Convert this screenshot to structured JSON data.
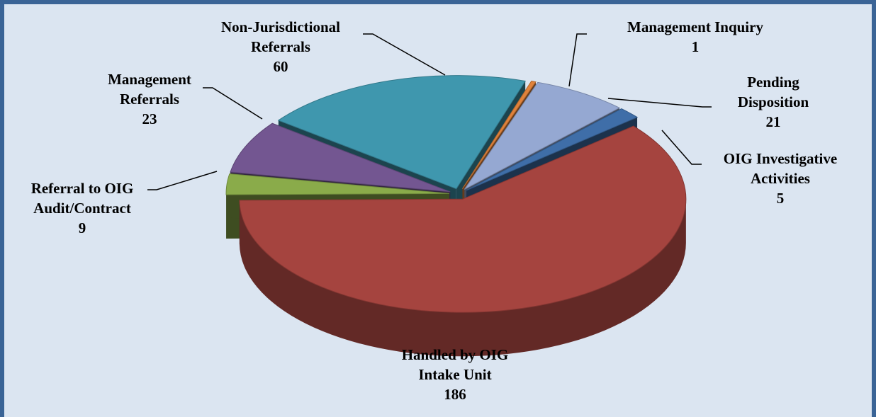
{
  "chart_data": {
    "type": "pie3d",
    "categories": [
      "Management Inquiry",
      "Pending Disposition",
      "OIG Investigative Activities",
      "Handled by OIG Intake Unit",
      "Referral to OIG Audit/Contract",
      "Management Referrals",
      "Non-Jurisdictional Referrals"
    ],
    "values": [
      1,
      21,
      5,
      186,
      9,
      23,
      60
    ],
    "colors": [
      "#e0823b",
      "#95a8d2",
      "#3f6ea8",
      "#a5443f",
      "#8aab4a",
      "#735691",
      "#3f97ae"
    ]
  }
}
